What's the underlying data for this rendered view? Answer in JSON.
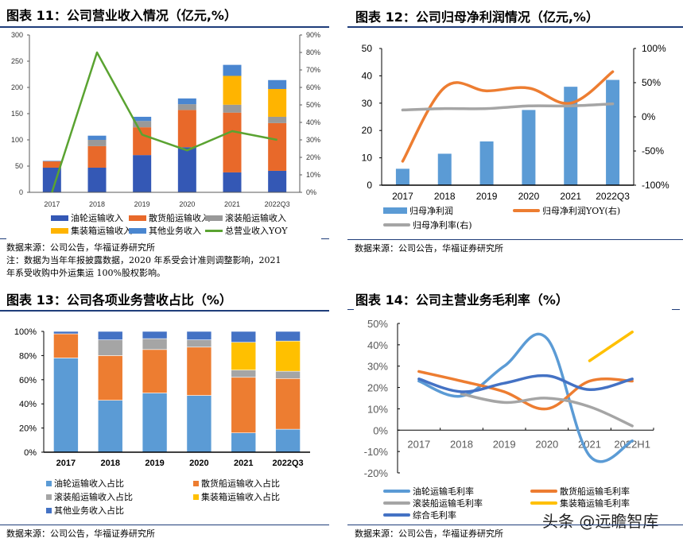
{
  "colors": {
    "rule": "#1f3d7a",
    "oil": "#3458b5",
    "bulk": "#e8692a",
    "roro": "#999999",
    "container": "#ffb400",
    "other": "#4a86d0",
    "yoy_green": "#5aa331",
    "bar_blue": "#5b9bd5",
    "orange": "#ed7d31",
    "gray": "#a5a5a5",
    "gold": "#ffc000",
    "darkblue": "#4472c4"
  },
  "panels": {
    "p11": {
      "title": "图表 11：公司营业收入情况（亿元,%）",
      "source": "数据来源：公司公告，华福证券研究所",
      "note_line1": "注：数据为当年年报披露数据，2020 年系受会计准则调整影响，2021",
      "note_line2": "年系受收购中外运集运 100%股权影响。"
    },
    "p12": {
      "title": "图表 12：公司归母净利润情况（亿元,%）",
      "source": "数据来源：公司公告，华福证券研究所"
    },
    "p13": {
      "title": "图表 13：公司各项业务营收占比（%）",
      "source": "数据来源：公司公告，华福证券研究所"
    },
    "p14": {
      "title": "图表 14：公司主营业务毛利率（%）",
      "source": "数据来源：公司公告，华福证券研究所"
    }
  },
  "watermark": "头条 @远瞻智库",
  "chart_data": [
    {
      "id": "chart11",
      "type": "bar",
      "stacked": true,
      "title": "图表 11：公司营业收入情况（亿元,%）",
      "categories": [
        "2017",
        "2018",
        "2019",
        "2020",
        "2021",
        "2022Q3"
      ],
      "ylim": [
        0,
        300
      ],
      "yticks": [
        "0",
        "50",
        "100",
        "150",
        "200",
        "250",
        "300"
      ],
      "y2lim": [
        0,
        90
      ],
      "y2ticks": [
        "0%",
        "10%",
        "20%",
        "30%",
        "40%",
        "50%",
        "60%",
        "70%",
        "80%",
        "90%"
      ],
      "series": [
        {
          "name": "油轮运输收入",
          "color": "#3458b5",
          "values": [
            47,
            47,
            71,
            86,
            38,
            41
          ]
        },
        {
          "name": "散货船运输收入",
          "color": "#e8692a",
          "values": [
            12,
            41,
            53,
            71,
            114,
            91
          ]
        },
        {
          "name": "滚装船运输收入",
          "color": "#999999",
          "values": [
            0,
            12,
            12,
            11,
            15,
            12
          ]
        },
        {
          "name": "集装箱运输收入",
          "color": "#ffb400",
          "values": [
            0,
            0,
            0,
            0,
            55,
            53
          ]
        },
        {
          "name": "其他业务收入",
          "color": "#4a86d0",
          "values": [
            1,
            8,
            8,
            11,
            21,
            17
          ]
        }
      ],
      "line_series": [
        {
          "name": "总营业收入YOY",
          "color": "#5aa331",
          "axis": "right",
          "values": [
            0,
            80,
            33,
            24,
            35,
            30
          ]
        }
      ],
      "legend_position": "bottom"
    },
    {
      "id": "chart12",
      "type": "bar",
      "title": "图表 12：公司归母净利润情况（亿元,%）",
      "categories": [
        "2017",
        "2018",
        "2019",
        "2020",
        "2021",
        "2022Q3"
      ],
      "ylim": [
        0,
        50
      ],
      "yticks": [
        "0",
        "10",
        "20",
        "30",
        "40",
        "50"
      ],
      "y2lim": [
        -100,
        100
      ],
      "y2ticks": [
        "-100%",
        "-50%",
        "0%",
        "50%",
        "100%"
      ],
      "series": [
        {
          "name": "归母净利润",
          "color": "#5b9bd5",
          "values": [
            6,
            11.5,
            16,
            27.5,
            36,
            38.5
          ]
        }
      ],
      "line_series": [
        {
          "name": "归母净利润YOY(右)",
          "color": "#ed7d31",
          "axis": "right",
          "values": [
            -65,
            43,
            38,
            42,
            20,
            66
          ]
        },
        {
          "name": "归母净利率(右)",
          "color": "#a5a5a5",
          "axis": "right",
          "values": [
            10,
            12,
            12,
            16,
            16,
            19
          ]
        }
      ],
      "legend_position": "bottom"
    },
    {
      "id": "chart13",
      "type": "bar",
      "stacked": true,
      "percent": true,
      "title": "图表 13：公司各项业务营收占比（%）",
      "categories": [
        "2017",
        "2018",
        "2019",
        "2020",
        "2021",
        "2022Q3"
      ],
      "ylim": [
        0,
        100
      ],
      "yticks": [
        "0%",
        "20%",
        "40%",
        "60%",
        "80%",
        "100%"
      ],
      "series": [
        {
          "name": "油轮运输收入占比",
          "color": "#5b9bd5",
          "values": [
            78,
            43,
            49,
            47,
            16,
            19
          ]
        },
        {
          "name": "散货船运输收入占比",
          "color": "#ed7d31",
          "values": [
            20,
            37,
            36,
            40,
            46,
            42
          ]
        },
        {
          "name": "滚装船运输收入占比",
          "color": "#a5a5a5",
          "values": [
            0,
            13,
            9,
            6,
            6,
            6
          ]
        },
        {
          "name": "集装箱运输收入占比",
          "color": "#ffc000",
          "values": [
            0,
            0,
            0,
            0,
            23,
            25
          ]
        },
        {
          "name": "其他业务收入占比",
          "color": "#4472c4",
          "values": [
            2,
            7,
            6,
            7,
            9,
            8
          ]
        }
      ],
      "legend_position": "bottom"
    },
    {
      "id": "chart14",
      "type": "line",
      "title": "图表 14：公司主营业务毛利率（%）",
      "categories": [
        "2017",
        "2018",
        "2019",
        "2020",
        "2021",
        "2022H1"
      ],
      "ylim": [
        -20,
        50
      ],
      "yticks": [
        "-20%",
        "-10%",
        "0%",
        "10%",
        "20%",
        "30%",
        "40%",
        "50%"
      ],
      "series": [
        {
          "name": "油轮运输毛利率",
          "color": "#5b9bd5",
          "values": [
            23,
            16,
            30,
            43,
            -12,
            -5
          ]
        },
        {
          "name": "散货船运输毛利率",
          "color": "#ed7d31",
          "values": [
            27.5,
            23,
            18,
            10,
            23,
            23
          ]
        },
        {
          "name": "滚装船运输毛利率",
          "color": "#a5a5a5",
          "values": [
            null,
            17,
            13,
            15,
            11,
            2
          ]
        },
        {
          "name": "集装箱运输毛利率",
          "color": "#ffc000",
          "values": [
            null,
            null,
            null,
            null,
            32.5,
            46
          ]
        },
        {
          "name": "综合毛利率",
          "color": "#4472c4",
          "values": [
            24,
            18,
            22,
            25.5,
            19,
            24
          ]
        }
      ],
      "legend_position": "bottom"
    }
  ]
}
